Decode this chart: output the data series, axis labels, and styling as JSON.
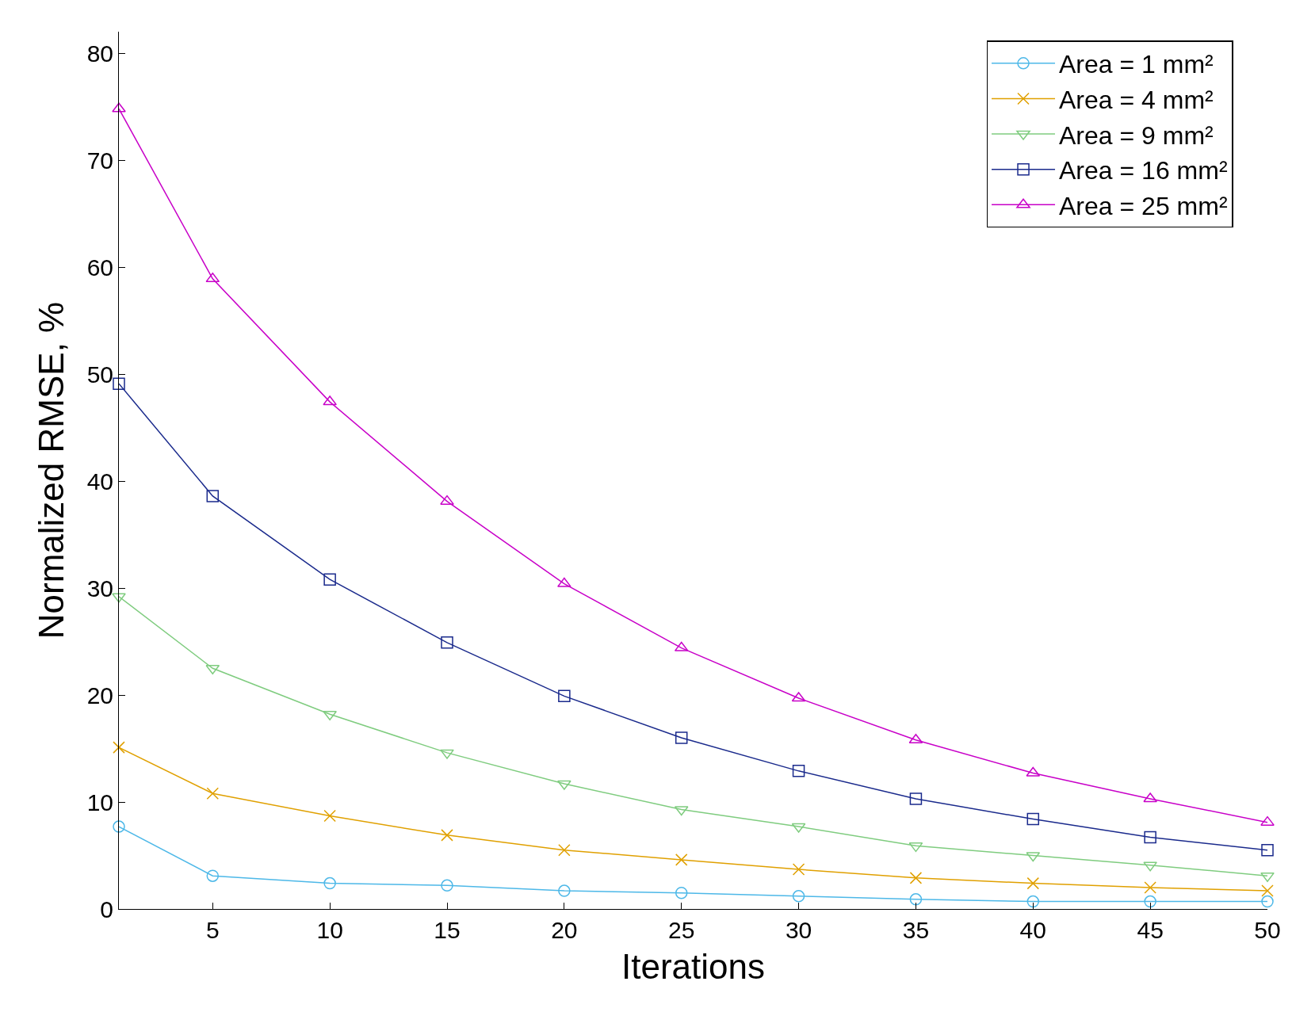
{
  "chart_data": {
    "type": "line",
    "xlabel": "Iterations",
    "ylabel": "Normalized RMSE, %",
    "x": [
      1,
      5,
      10,
      15,
      20,
      25,
      30,
      35,
      40,
      45,
      50
    ],
    "xlim": [
      1,
      50
    ],
    "xticks": [
      5,
      10,
      15,
      20,
      25,
      30,
      35,
      40,
      45,
      50
    ],
    "ylim": [
      0,
      82
    ],
    "yticks": [
      0,
      10,
      20,
      30,
      40,
      50,
      60,
      70,
      80
    ],
    "grid": false,
    "legend": "top right",
    "line_style": "solid",
    "series": [
      {
        "name": "Area = 1 mm²",
        "color": "#4db8e8",
        "marker": "circle",
        "values": [
          7.7,
          3.1,
          2.4,
          2.2,
          1.7,
          1.5,
          1.2,
          0.9,
          0.7,
          0.7,
          0.7
        ]
      },
      {
        "name": "Area = 4 mm²",
        "color": "#e0a000",
        "marker": "cross",
        "values": [
          15.1,
          10.8,
          8.7,
          6.9,
          5.5,
          4.6,
          3.7,
          2.9,
          2.4,
          2.0,
          1.7
        ]
      },
      {
        "name": "Area = 9 mm²",
        "color": "#7fcc7f",
        "marker": "triangle-down",
        "values": [
          29.2,
          22.5,
          18.2,
          14.6,
          11.7,
          9.3,
          7.7,
          5.9,
          5.0,
          4.1,
          3.1
        ]
      },
      {
        "name": "Area = 16 mm²",
        "color": "#1a2a8c",
        "marker": "square",
        "values": [
          49.1,
          38.6,
          30.8,
          24.9,
          19.9,
          16.0,
          12.9,
          10.3,
          8.4,
          6.7,
          5.5
        ]
      },
      {
        "name": "Area = 25 mm²",
        "color": "#c800c8",
        "marker": "triangle",
        "values": [
          74.8,
          58.9,
          47.4,
          38.1,
          30.4,
          24.4,
          19.7,
          15.8,
          12.7,
          10.3,
          8.1
        ]
      }
    ]
  }
}
